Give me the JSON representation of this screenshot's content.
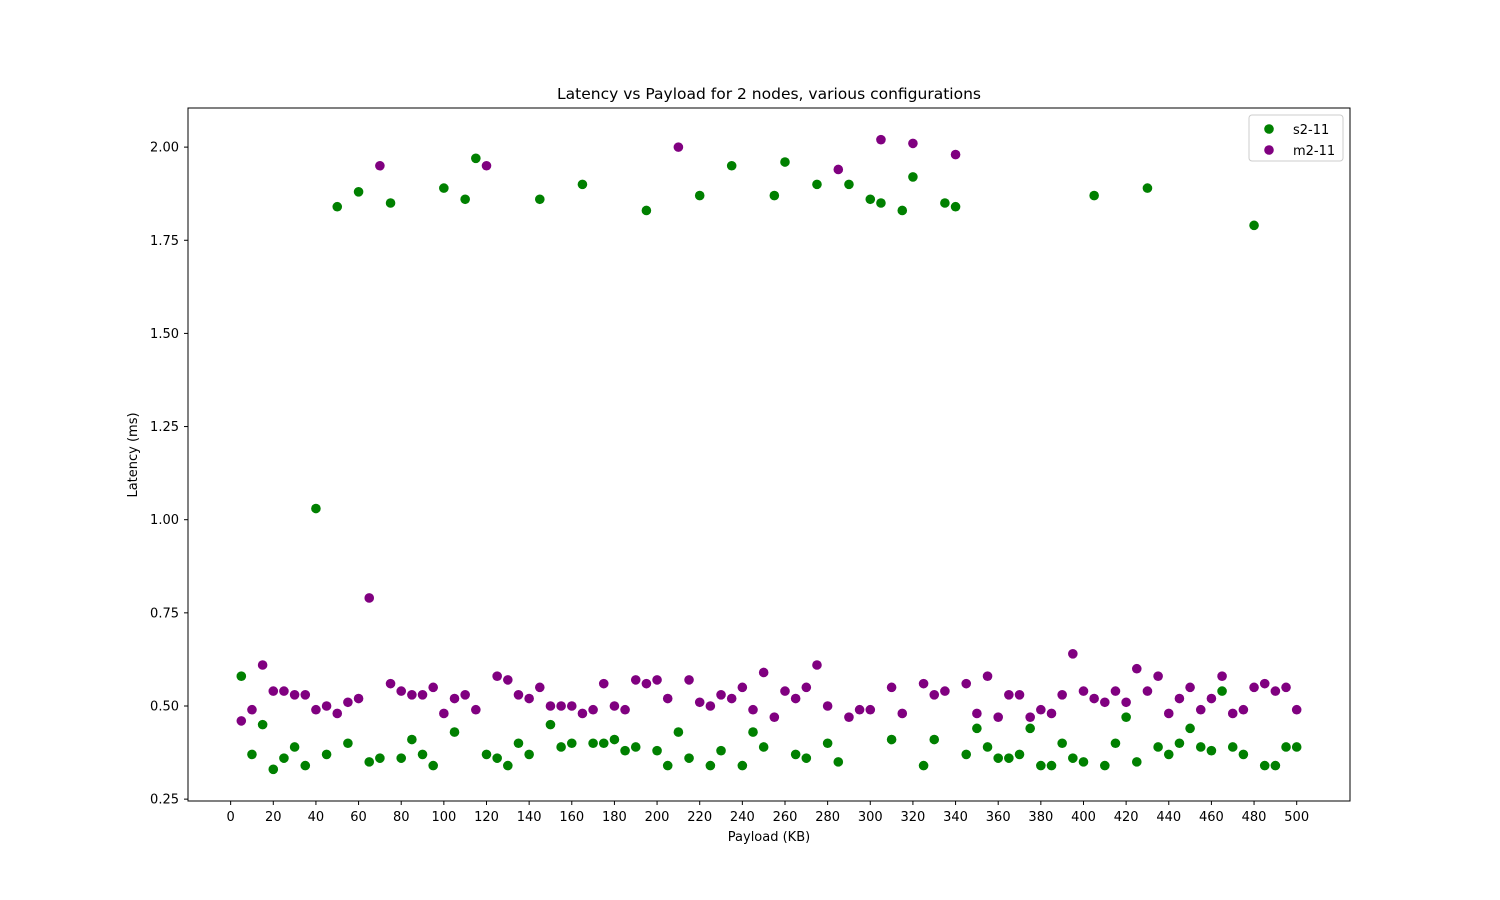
{
  "chart_data": {
    "type": "scatter",
    "title": "Latency vs Payload for 2 nodes, various configurations",
    "xlabel": "Payload (KB)",
    "ylabel": "Latency (ms)",
    "xlim": [
      -20,
      525
    ],
    "ylim": [
      0.245,
      2.105
    ],
    "xticks": [
      0,
      20,
      40,
      60,
      80,
      100,
      120,
      140,
      160,
      180,
      200,
      220,
      240,
      260,
      280,
      300,
      320,
      340,
      360,
      380,
      400,
      420,
      440,
      460,
      480,
      500
    ],
    "yticks": [
      0.25,
      0.5,
      0.75,
      1.0,
      1.25,
      1.5,
      1.75,
      2.0
    ],
    "grid": false,
    "legend_position": "top-right",
    "series": [
      {
        "name": "s2-11",
        "color": "#008000",
        "x": [
          5,
          10,
          15,
          20,
          25,
          30,
          35,
          40,
          45,
          50,
          55,
          60,
          65,
          70,
          75,
          80,
          85,
          90,
          95,
          100,
          105,
          110,
          115,
          120,
          125,
          130,
          135,
          140,
          145,
          150,
          155,
          160,
          165,
          170,
          175,
          180,
          185,
          190,
          195,
          200,
          205,
          210,
          215,
          220,
          225,
          230,
          235,
          240,
          245,
          250,
          255,
          260,
          265,
          270,
          275,
          280,
          285,
          290,
          300,
          305,
          310,
          315,
          320,
          325,
          330,
          335,
          340,
          345,
          350,
          355,
          360,
          365,
          370,
          375,
          380,
          385,
          390,
          395,
          400,
          405,
          410,
          415,
          420,
          425,
          430,
          435,
          440,
          445,
          450,
          455,
          460,
          465,
          470,
          475,
          480,
          485,
          490,
          495,
          500
        ],
        "y": [
          0.58,
          0.37,
          0.45,
          0.33,
          0.36,
          0.39,
          0.34,
          1.03,
          0.37,
          1.84,
          0.4,
          1.88,
          0.35,
          0.36,
          1.85,
          0.36,
          0.41,
          0.37,
          0.34,
          1.89,
          0.43,
          1.86,
          1.97,
          0.37,
          0.36,
          0.34,
          0.4,
          0.37,
          1.86,
          0.45,
          0.39,
          0.4,
          1.9,
          0.4,
          0.4,
          0.41,
          0.38,
          0.39,
          1.83,
          0.38,
          0.34,
          0.43,
          0.36,
          1.87,
          0.34,
          0.38,
          1.95,
          0.34,
          0.43,
          0.39,
          1.87,
          1.96,
          0.37,
          0.36,
          1.9,
          0.4,
          0.35,
          1.9,
          1.86,
          1.85,
          0.41,
          1.83,
          1.92,
          0.34,
          0.41,
          1.85,
          1.84,
          0.37,
          0.44,
          0.39,
          0.36,
          0.36,
          0.37,
          0.44,
          0.34,
          0.34,
          0.4,
          0.36,
          0.35,
          1.87,
          0.34,
          0.4,
          0.47,
          0.35,
          1.89,
          0.39,
          0.37,
          0.4,
          0.44,
          0.39,
          0.38,
          0.54,
          0.39,
          0.37,
          1.79,
          0.34,
          0.34,
          0.39,
          0.39
        ]
      },
      {
        "name": "m2-11",
        "color": "#800080",
        "x": [
          5,
          10,
          15,
          20,
          25,
          30,
          35,
          40,
          45,
          50,
          55,
          60,
          65,
          70,
          75,
          80,
          85,
          90,
          95,
          100,
          105,
          110,
          115,
          120,
          125,
          130,
          135,
          140,
          145,
          150,
          155,
          160,
          165,
          170,
          175,
          180,
          185,
          190,
          195,
          200,
          205,
          210,
          215,
          220,
          225,
          230,
          235,
          240,
          245,
          250,
          255,
          260,
          265,
          270,
          275,
          280,
          285,
          290,
          295,
          300,
          305,
          310,
          315,
          320,
          325,
          330,
          335,
          340,
          345,
          350,
          355,
          360,
          365,
          370,
          375,
          380,
          385,
          390,
          395,
          400,
          405,
          410,
          415,
          420,
          425,
          430,
          435,
          440,
          445,
          450,
          455,
          460,
          465,
          470,
          475,
          480,
          485,
          490,
          495,
          500
        ],
        "y": [
          0.46,
          0.49,
          0.61,
          0.54,
          0.54,
          0.53,
          0.53,
          0.49,
          0.5,
          0.48,
          0.51,
          0.52,
          0.79,
          1.95,
          0.56,
          0.54,
          0.53,
          0.53,
          0.55,
          0.48,
          0.52,
          0.53,
          0.49,
          1.95,
          0.58,
          0.57,
          0.53,
          0.52,
          0.55,
          0.5,
          0.5,
          0.5,
          0.48,
          0.49,
          0.56,
          0.5,
          0.49,
          0.57,
          0.56,
          0.57,
          0.52,
          2.0,
          0.57,
          0.51,
          0.5,
          0.53,
          0.52,
          0.55,
          0.49,
          0.59,
          0.47,
          0.54,
          0.52,
          0.55,
          0.61,
          0.5,
          1.94,
          0.47,
          0.49,
          0.49,
          2.02,
          0.55,
          0.48,
          2.01,
          0.56,
          0.53,
          0.54,
          1.98,
          0.56,
          0.48,
          0.58,
          0.47,
          0.53,
          0.53,
          0.47,
          0.49,
          0.48,
          0.53,
          0.64,
          0.54,
          0.52,
          0.51,
          0.54,
          0.51,
          0.6,
          0.54,
          0.58,
          0.48,
          0.52,
          0.55,
          0.49,
          0.52,
          0.58,
          0.48,
          0.49,
          0.55,
          0.56,
          0.54,
          0.55,
          0.49
        ]
      }
    ]
  }
}
